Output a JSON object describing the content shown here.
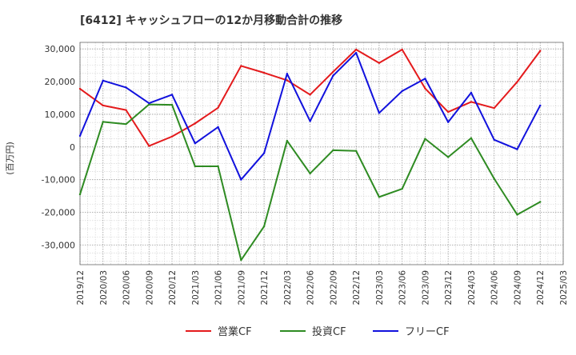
{
  "chart_data": {
    "type": "line",
    "title": "[6412]  キャッシュフローの12か月移動合計の推移",
    "ylabel": "(百万円)",
    "xlabel": "",
    "ylim": [
      -36000,
      32000
    ],
    "yticks": [
      30000,
      20000,
      10000,
      0,
      -10000,
      -20000,
      -30000
    ],
    "ytick_labels": [
      "30,000",
      "20,000",
      "10,000",
      "0",
      "-10,000",
      "-20,000",
      "-30,000"
    ],
    "xtick_labels": [
      "2019/12",
      "2020/03",
      "2020/06",
      "2020/09",
      "2020/12",
      "2021/03",
      "2021/06",
      "2021/09",
      "2021/12",
      "2022/03",
      "2022/06",
      "2022/09",
      "2022/12",
      "2023/03",
      "2023/06",
      "2023/09",
      "2023/12",
      "2024/03",
      "2024/06",
      "2024/09",
      "2024/12",
      "2025/03"
    ],
    "x": [
      "2019/12",
      "2020/03",
      "2020/06",
      "2020/09",
      "2020/12",
      "2021/03",
      "2021/06",
      "2021/09",
      "2021/12",
      "2022/03",
      "2022/06",
      "2022/09",
      "2022/12",
      "2023/03",
      "2023/06",
      "2023/09",
      "2023/12",
      "2024/03",
      "2024/06",
      "2024/09",
      "2024/12"
    ],
    "series": [
      {
        "name": "営業CF",
        "color": "#e41a1c",
        "values": [
          17800,
          12700,
          11300,
          300,
          3200,
          7200,
          12000,
          24800,
          22700,
          20400,
          16000,
          23000,
          29800,
          25700,
          29800,
          17900,
          10700,
          13800,
          11900,
          19900,
          29400
        ]
      },
      {
        "name": "投資CF",
        "color": "#2e8b22",
        "values": [
          -14500,
          7700,
          7000,
          13000,
          12900,
          -5900,
          -5900,
          -34600,
          -24300,
          1900,
          -8100,
          -1000,
          -1200,
          -15300,
          -12800,
          2500,
          -3100,
          2700,
          -9700,
          -20700,
          -16800
        ]
      },
      {
        "name": "フリーCF",
        "color": "#1111dd",
        "values": [
          3400,
          20300,
          18200,
          13400,
          16000,
          1100,
          6100,
          -10000,
          -1900,
          22400,
          7900,
          21800,
          28800,
          10400,
          17100,
          20900,
          7600,
          16600,
          2200,
          -700,
          12700
        ]
      }
    ],
    "legend": {
      "position": "bottom-center"
    }
  }
}
